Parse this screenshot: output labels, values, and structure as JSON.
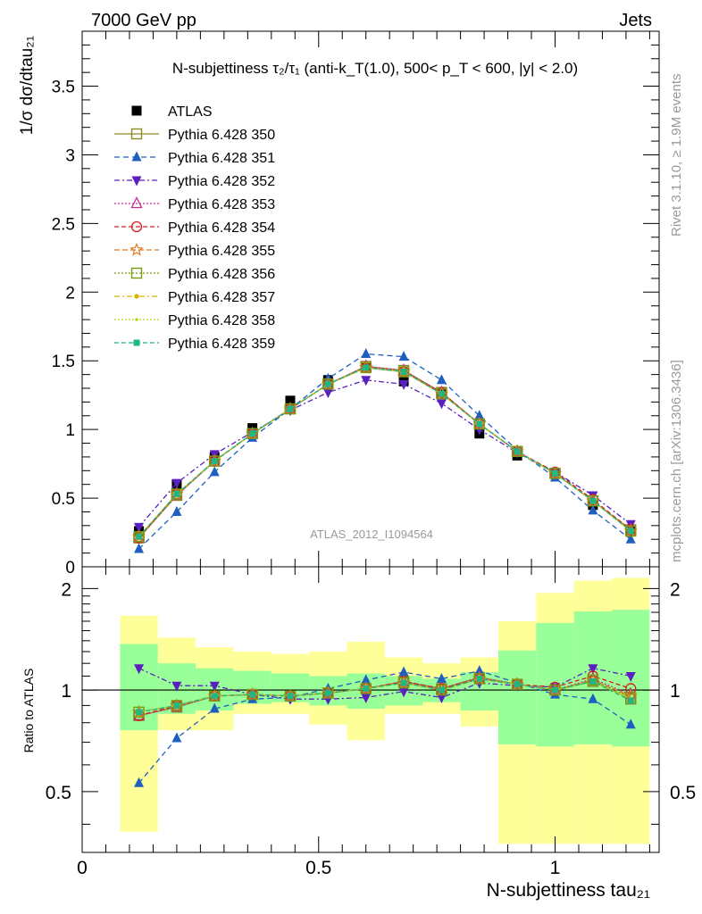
{
  "header": {
    "left": "7000 GeV pp",
    "right": "Jets"
  },
  "side_labels": {
    "rivet": "Rivet 3.1.10, ≥ 1.9M events",
    "mcplots": "mcplots.cern.ch [arXiv:1306.3436]"
  },
  "chart_data": [
    {
      "type": "scatter",
      "title": "N-subjettiness τ₂/τ₁ (anti-k_T(1.0), 500< p_T < 600, |y| < 2.0)",
      "ylabel": "1/σ dσ/dtau₂₁",
      "watermark": "ATLAS_2012_I1094564",
      "xlim": [
        0,
        1.22
      ],
      "ylim": [
        0,
        3.9
      ],
      "yticks": [
        0,
        0.5,
        1,
        1.5,
        2,
        2.5,
        3,
        3.5
      ],
      "x": [
        0.12,
        0.2,
        0.28,
        0.36,
        0.44,
        0.52,
        0.6,
        0.68,
        0.76,
        0.84,
        0.92,
        1.0,
        1.08,
        1.16
      ],
      "series": [
        {
          "name": "ATLAS",
          "color": "#000000",
          "marker": "square-filled",
          "dash": "none",
          "values": [
            0.26,
            0.6,
            0.8,
            1.01,
            1.21,
            1.36,
            1.45,
            1.35,
            1.26,
            0.97,
            0.81,
            0.68,
            0.45,
            0.26
          ]
        },
        {
          "name": "Pythia 6.428 350",
          "color": "#8b8b26",
          "marker": "square-open",
          "dash": "solid",
          "values": [
            0.21,
            0.52,
            0.77,
            0.97,
            1.15,
            1.33,
            1.46,
            1.43,
            1.27,
            1.04,
            0.84,
            0.68,
            0.48,
            0.27
          ]
        },
        {
          "name": "Pythia 6.428 351",
          "color": "#1f5fbf",
          "marker": "triangle-filled",
          "dash": "6,4",
          "values": [
            0.13,
            0.4,
            0.69,
            0.94,
            1.15,
            1.37,
            1.55,
            1.53,
            1.36,
            1.1,
            0.85,
            0.65,
            0.41,
            0.2
          ]
        },
        {
          "name": "Pythia 6.428 352",
          "color": "#5a1fbf",
          "marker": "triangledown-filled",
          "dash": "6,3,2,3",
          "values": [
            0.29,
            0.61,
            0.82,
            0.98,
            1.14,
            1.27,
            1.36,
            1.33,
            1.19,
            1.0,
            0.83,
            0.69,
            0.52,
            0.31
          ]
        },
        {
          "name": "Pythia 6.428 353",
          "color": "#c0308f",
          "marker": "triangle-open",
          "dash": "2,2",
          "values": [
            0.21,
            0.52,
            0.77,
            0.97,
            1.15,
            1.33,
            1.46,
            1.43,
            1.27,
            1.04,
            0.84,
            0.68,
            0.48,
            0.27
          ]
        },
        {
          "name": "Pythia 6.428 354",
          "color": "#d01f1f",
          "marker": "circle-open",
          "dash": "5,3",
          "values": [
            0.21,
            0.53,
            0.77,
            0.97,
            1.15,
            1.33,
            1.45,
            1.42,
            1.27,
            1.04,
            0.84,
            0.69,
            0.49,
            0.27
          ]
        },
        {
          "name": "Pythia 6.428 355",
          "color": "#e07a20",
          "marker": "star-open",
          "dash": "6,3",
          "values": [
            0.22,
            0.53,
            0.77,
            0.97,
            1.15,
            1.33,
            1.45,
            1.42,
            1.26,
            1.04,
            0.84,
            0.68,
            0.48,
            0.26
          ]
        },
        {
          "name": "Pythia 6.428 356",
          "color": "#7a9a10",
          "marker": "square-open",
          "dash": "2,2",
          "values": [
            0.22,
            0.53,
            0.77,
            0.97,
            1.15,
            1.33,
            1.45,
            1.42,
            1.26,
            1.04,
            0.84,
            0.68,
            0.48,
            0.26
          ]
        },
        {
          "name": "Pythia 6.428 357",
          "color": "#d8b400",
          "marker": "dot",
          "dash": "6,3,2,3",
          "values": [
            0.22,
            0.53,
            0.77,
            0.97,
            1.15,
            1.33,
            1.45,
            1.42,
            1.26,
            1.04,
            0.84,
            0.68,
            0.48,
            0.26
          ]
        },
        {
          "name": "Pythia 6.428 358",
          "color": "#b8d820",
          "marker": "dot-small",
          "dash": "2,2",
          "values": [
            0.22,
            0.53,
            0.77,
            0.97,
            1.15,
            1.33,
            1.45,
            1.42,
            1.26,
            1.04,
            0.84,
            0.68,
            0.48,
            0.26
          ]
        },
        {
          "name": "Pythia 6.428 359",
          "color": "#20b880",
          "marker": "square-filled-small",
          "dash": "5,3",
          "values": [
            0.22,
            0.53,
            0.77,
            0.97,
            1.15,
            1.33,
            1.45,
            1.42,
            1.26,
            1.04,
            0.84,
            0.68,
            0.48,
            0.26
          ]
        }
      ]
    },
    {
      "type": "scatter",
      "xlabel": "N-subjettiness tau₂₁",
      "ylabel": "Ratio to ATLAS",
      "xlim": [
        0,
        1.22
      ],
      "ylim": [
        0.33,
        2.32
      ],
      "yticks": [
        0.5,
        1,
        2
      ],
      "xticks": [
        0,
        0.5,
        1
      ],
      "x": [
        0.12,
        0.2,
        0.28,
        0.36,
        0.44,
        0.52,
        0.6,
        0.68,
        0.76,
        0.84,
        0.92,
        1.0,
        1.08,
        1.16
      ],
      "bin_edges": [
        0.08,
        0.16,
        0.24,
        0.32,
        0.4,
        0.48,
        0.56,
        0.64,
        0.72,
        0.8,
        0.88,
        0.96,
        1.04,
        1.12,
        1.2
      ],
      "band_stat": {
        "color": "#99ff99",
        "lo": [
          0.76,
          0.85,
          0.87,
          0.91,
          0.92,
          0.9,
          0.88,
          0.9,
          0.92,
          0.87,
          0.69,
          0.68,
          0.69,
          0.68
        ],
        "hi": [
          1.37,
          1.2,
          1.16,
          1.14,
          1.12,
          1.1,
          1.12,
          1.1,
          1.08,
          1.13,
          1.31,
          1.58,
          1.71,
          1.73
        ]
      },
      "band_total": {
        "color": "#ffff99",
        "lo": [
          0.38,
          0.76,
          0.76,
          0.85,
          0.85,
          0.79,
          0.71,
          0.85,
          0.85,
          0.78,
          0.35,
          0.35,
          0.35,
          0.35
        ],
        "hi": [
          1.66,
          1.43,
          1.34,
          1.3,
          1.28,
          1.3,
          1.39,
          1.25,
          1.2,
          1.25,
          1.6,
          1.94,
          2.11,
          2.15
        ]
      },
      "series": [
        {
          "name": "Pythia 6.428 350",
          "values": [
            0.84,
            0.89,
            0.96,
            0.97,
            0.96,
            0.98,
            1.01,
            1.06,
            1.01,
            1.09,
            1.04,
            1.0,
            1.06,
            0.94
          ]
        },
        {
          "name": "Pythia 6.428 351",
          "values": [
            0.53,
            0.72,
            0.88,
            0.94,
            0.95,
            1.01,
            1.07,
            1.13,
            1.08,
            1.14,
            1.05,
            0.97,
            0.94,
            0.79
          ]
        },
        {
          "name": "Pythia 6.428 352",
          "values": [
            1.16,
            1.03,
            1.03,
            0.97,
            0.94,
            0.94,
            0.95,
            0.99,
            0.95,
            1.05,
            1.03,
            1.02,
            1.16,
            1.1
          ]
        },
        {
          "name": "Pythia 6.428 353",
          "values": [
            0.84,
            0.89,
            0.96,
            0.97,
            0.96,
            0.98,
            1.01,
            1.06,
            1.01,
            1.09,
            1.04,
            1.0,
            1.08,
            0.97
          ]
        },
        {
          "name": "Pythia 6.428 354",
          "values": [
            0.84,
            0.9,
            0.96,
            0.97,
            0.96,
            0.98,
            1.01,
            1.06,
            1.01,
            1.08,
            1.04,
            1.02,
            1.1,
            1.01
          ]
        },
        {
          "name": "Pythia 6.428 355",
          "values": [
            0.86,
            0.9,
            0.96,
            0.97,
            0.96,
            0.98,
            1.01,
            1.05,
            1.0,
            1.08,
            1.04,
            1.0,
            1.07,
            0.96
          ]
        },
        {
          "name": "Pythia 6.428 356",
          "values": [
            0.86,
            0.9,
            0.96,
            0.97,
            0.96,
            0.98,
            1.01,
            1.05,
            1.0,
            1.08,
            1.04,
            1.0,
            1.07,
            0.95
          ]
        },
        {
          "name": "Pythia 6.428 357",
          "values": [
            0.86,
            0.9,
            0.96,
            0.97,
            0.96,
            0.98,
            1.01,
            1.05,
            1.0,
            1.08,
            1.04,
            1.0,
            1.06,
            0.94
          ]
        },
        {
          "name": "Pythia 6.428 358",
          "values": [
            0.86,
            0.9,
            0.96,
            0.97,
            0.96,
            0.98,
            1.01,
            1.05,
            1.0,
            1.08,
            1.04,
            1.0,
            1.06,
            0.94
          ]
        },
        {
          "name": "Pythia 6.428 359",
          "values": [
            0.86,
            0.9,
            0.96,
            0.97,
            0.96,
            0.98,
            1.01,
            1.05,
            1.0,
            1.08,
            1.04,
            1.0,
            1.06,
            0.93
          ]
        }
      ]
    }
  ]
}
